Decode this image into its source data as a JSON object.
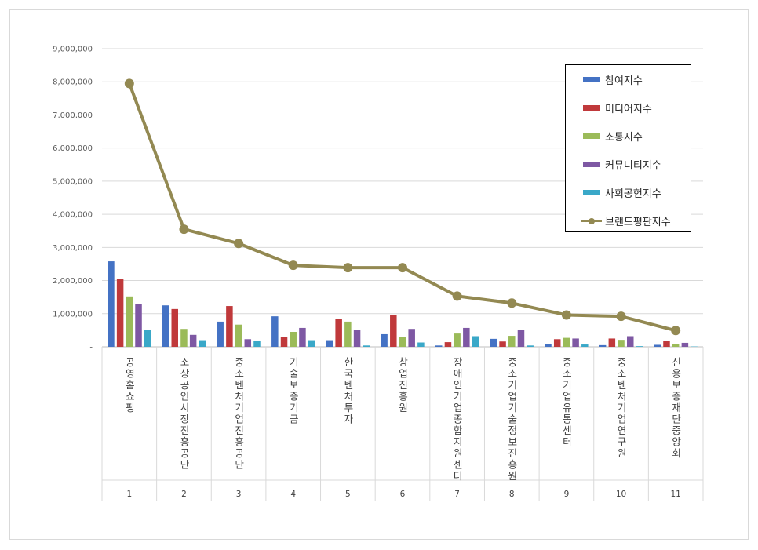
{
  "chart_data": {
    "type": "bar",
    "title": "",
    "xlabel": "",
    "ylabel": "",
    "ylim": [
      0,
      9000000
    ],
    "yticks": [
      0,
      1000000,
      2000000,
      3000000,
      4000000,
      5000000,
      6000000,
      7000000,
      8000000,
      9000000
    ],
    "ytick_labels": [
      "-",
      "1,000,000",
      "2,000,000",
      "3,000,000",
      "4,000,000",
      "5,000,000",
      "6,000,000",
      "7,000,000",
      "8,000,000",
      "9,000,000"
    ],
    "grid": true,
    "legend_position": "top-right",
    "categories": [
      "공영홈쇼핑",
      "소상공인시장진흥공단",
      "중소벤처기업진흥공단",
      "기술보증기금",
      "한국벤처투자",
      "창업진흥원",
      "장애인기업종합지원센터",
      "중소기업기술정보진흥원",
      "중소기업유통센터",
      "중소벤처기업연구원",
      "신용보증재단중앙회"
    ],
    "category_numbers": [
      "1",
      "2",
      "3",
      "4",
      "5",
      "6",
      "7",
      "8",
      "9",
      "10",
      "11"
    ],
    "series": [
      {
        "name": "참여지수",
        "kind": "bar",
        "color": "#4472c4",
        "values": [
          2580000,
          1250000,
          760000,
          920000,
          200000,
          380000,
          40000,
          240000,
          90000,
          50000,
          60000
        ]
      },
      {
        "name": "미디어지수",
        "kind": "bar",
        "color": "#c0393b",
        "values": [
          2060000,
          1140000,
          1230000,
          300000,
          830000,
          960000,
          140000,
          160000,
          230000,
          250000,
          170000
        ]
      },
      {
        "name": "소통지수",
        "kind": "bar",
        "color": "#9bbb59",
        "values": [
          1520000,
          540000,
          670000,
          450000,
          760000,
          300000,
          400000,
          330000,
          270000,
          210000,
          90000
        ]
      },
      {
        "name": "커뮤니티지수",
        "kind": "bar",
        "color": "#7e58a3",
        "values": [
          1280000,
          360000,
          230000,
          570000,
          500000,
          540000,
          570000,
          500000,
          250000,
          320000,
          120000
        ]
      },
      {
        "name": "사회공헌지수",
        "kind": "bar",
        "color": "#3aa8c8",
        "values": [
          500000,
          200000,
          190000,
          200000,
          40000,
          130000,
          320000,
          40000,
          70000,
          20000,
          10000
        ]
      },
      {
        "name": "브랜드평판지수",
        "kind": "line",
        "color": "#938952",
        "values": [
          7950000,
          3550000,
          3120000,
          2460000,
          2390000,
          2390000,
          1530000,
          1320000,
          960000,
          920000,
          490000
        ]
      }
    ]
  }
}
